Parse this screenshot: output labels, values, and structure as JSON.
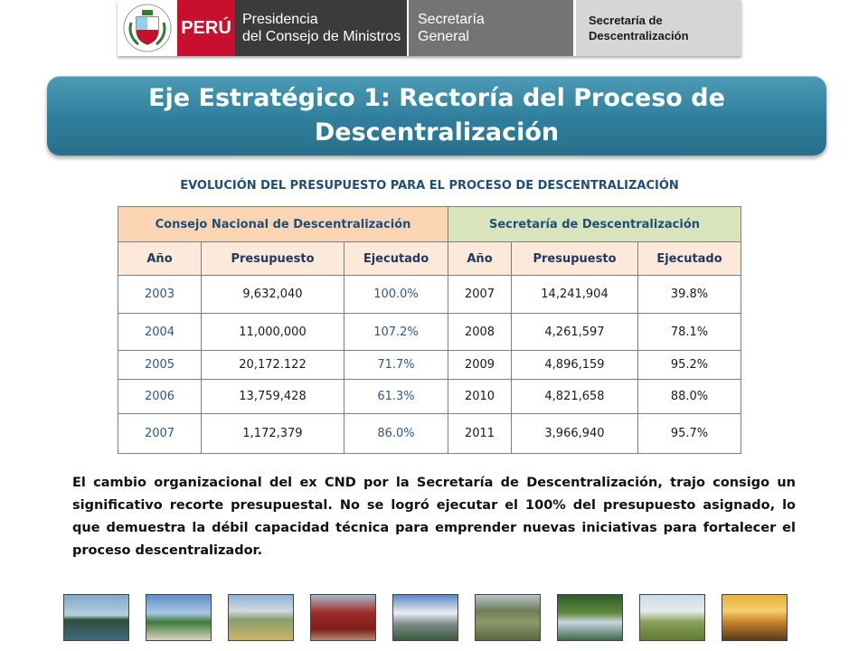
{
  "header": {
    "crest_text": "REPÚBLICA DEL PERÚ",
    "country": "PERÚ",
    "presidencia_line1": "Presidencia",
    "presidencia_line2": "del Consejo de Ministros",
    "secretaria_line1": "Secretaría",
    "secretaria_line2": "General",
    "descentralizacion_line1": "Secretaría de",
    "descentralizacion_line2": "Descentralización",
    "colors": {
      "peru_red": "#c8102e",
      "pcm_gray": "#3b3b3b",
      "sg_gray": "#747474"
    }
  },
  "title": "Eje  Estratégico 1: Rectoría del Proceso de\nDescentralización",
  "subtitle": "EVOLUCIÓN DEL PRESUPUESTO PARA EL PROCESO DE DESCENTRALIZACIÓN",
  "table": {
    "group_headers": [
      "Consejo Nacional de Descentralización",
      "Secretaría de Descentralización"
    ],
    "columns": [
      "Año",
      "Presupuesto",
      "Ejecutado",
      "Año",
      "Presupuesto",
      "Ejecutado"
    ],
    "rows": [
      [
        "2003",
        "9,632,040",
        "100.0%",
        "2007",
        "14,241,904",
        "39.8%"
      ],
      [
        "2004",
        "11,000,000",
        "107.2%",
        "2008",
        "4,261,597",
        "78.1%"
      ],
      [
        "2005",
        "20,172.122",
        "71.7%",
        "2009",
        "4,896,159",
        "95.2%"
      ],
      [
        "2006",
        "13,759,428",
        "61.3%",
        "2010",
        "4,821,658",
        "88.0%"
      ],
      [
        "2007",
        "1,172,379",
        "86.0%",
        "2011",
        "3,966,940",
        "95.7%"
      ]
    ]
  },
  "paragraph": "El cambio organizacional del ex CND por la Secretaría de Descentralización, trajo consigo un significativo recorte presupuestal. No se logró ejecutar el 100% del presupuesto asignado, lo que demuestra la débil capacidad técnica para emprender nuevas iniciativas para fortalecer el proceso descentralizador.",
  "photos": [
    {
      "name": "photo-lake"
    },
    {
      "name": "photo-palms-city"
    },
    {
      "name": "photo-mountain-field"
    },
    {
      "name": "photo-red-building"
    },
    {
      "name": "photo-snow-peak"
    },
    {
      "name": "photo-machu-picchu"
    },
    {
      "name": "photo-forest"
    },
    {
      "name": "photo-green-plain"
    },
    {
      "name": "photo-sunset"
    }
  ]
}
